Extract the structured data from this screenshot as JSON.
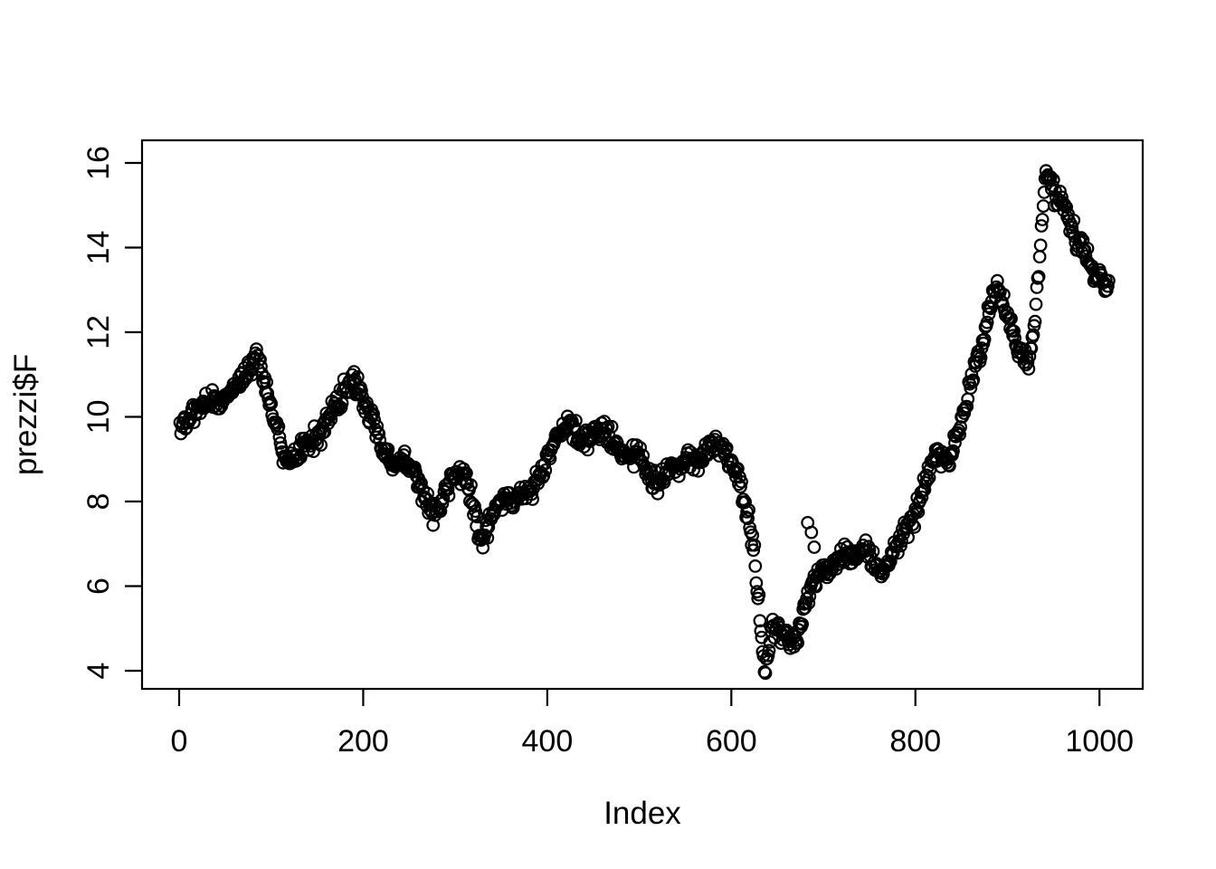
{
  "chart_data": {
    "type": "scatter",
    "title": "",
    "xlabel": "Index",
    "ylabel": "prezzi$F",
    "x_ticks": [
      0,
      200,
      400,
      600,
      800,
      1000
    ],
    "y_ticks": [
      4,
      6,
      8,
      10,
      12,
      14,
      16
    ],
    "xlim": [
      -39,
      1050
    ],
    "ylim": [
      3.5,
      16.5
    ],
    "x_start": 1,
    "n_points": 1010,
    "marker": "open-circle",
    "marker_color": "#000000",
    "axis_color": "#000000",
    "background_color": "#ffffff",
    "grid": false,
    "legend": false,
    "noise_amplitude": 0.11,
    "seed": 1234,
    "series": [
      {
        "name": "prezzi$F",
        "waypoints": [
          [
            0,
            9.75
          ],
          [
            8,
            9.9
          ],
          [
            18,
            10.15
          ],
          [
            28,
            10.4
          ],
          [
            38,
            10.45
          ],
          [
            48,
            10.4
          ],
          [
            58,
            10.6
          ],
          [
            68,
            10.75
          ],
          [
            76,
            11.0
          ],
          [
            84,
            11.3
          ],
          [
            90,
            11.15
          ],
          [
            97,
            10.6
          ],
          [
            104,
            9.9
          ],
          [
            112,
            9.35
          ],
          [
            120,
            9.15
          ],
          [
            128,
            9.25
          ],
          [
            136,
            9.45
          ],
          [
            145,
            9.65
          ],
          [
            154,
            9.85
          ],
          [
            163,
            10.05
          ],
          [
            172,
            10.3
          ],
          [
            181,
            10.55
          ],
          [
            189,
            10.8
          ],
          [
            196,
            10.6
          ],
          [
            204,
            10.15
          ],
          [
            212,
            9.8
          ],
          [
            220,
            9.45
          ],
          [
            228,
            9.1
          ],
          [
            236,
            8.85
          ],
          [
            244,
            8.9
          ],
          [
            252,
            8.7
          ],
          [
            260,
            8.35
          ],
          [
            268,
            8.0
          ],
          [
            276,
            7.65
          ],
          [
            283,
            7.8
          ],
          [
            291,
            8.3
          ],
          [
            299,
            8.7
          ],
          [
            307,
            8.6
          ],
          [
            315,
            8.2
          ],
          [
            323,
            7.5
          ],
          [
            330,
            7.1
          ],
          [
            337,
            7.5
          ],
          [
            345,
            7.9
          ],
          [
            353,
            8.0
          ],
          [
            361,
            7.9
          ],
          [
            369,
            7.95
          ],
          [
            377,
            8.1
          ],
          [
            385,
            8.3
          ],
          [
            393,
            8.7
          ],
          [
            401,
            9.1
          ],
          [
            409,
            9.5
          ],
          [
            417,
            9.8
          ],
          [
            424,
            9.85
          ],
          [
            432,
            9.6
          ],
          [
            440,
            9.35
          ],
          [
            448,
            9.5
          ],
          [
            456,
            9.65
          ],
          [
            464,
            9.6
          ],
          [
            472,
            9.3
          ],
          [
            480,
            9.0
          ],
          [
            488,
            8.85
          ],
          [
            496,
            9.0
          ],
          [
            504,
            8.8
          ],
          [
            512,
            8.45
          ],
          [
            520,
            8.3
          ],
          [
            528,
            8.55
          ],
          [
            536,
            8.95
          ],
          [
            544,
            8.85
          ],
          [
            552,
            8.95
          ],
          [
            560,
            8.8
          ],
          [
            568,
            9.0
          ],
          [
            576,
            9.25
          ],
          [
            584,
            9.3
          ],
          [
            592,
            9.15
          ],
          [
            600,
            8.9
          ],
          [
            607,
            8.6
          ],
          [
            613,
            8.1
          ],
          [
            619,
            7.5
          ],
          [
            625,
            6.7
          ],
          [
            630,
            5.7
          ],
          [
            634,
            4.6
          ],
          [
            637,
            4.15
          ],
          [
            641,
            4.8
          ],
          [
            646,
            5.2
          ],
          [
            652,
            5.05
          ],
          [
            658,
            4.9
          ],
          [
            664,
            4.95
          ],
          [
            670,
            5.0
          ],
          [
            676,
            5.4
          ],
          [
            682,
            5.8
          ],
          [
            688,
            6.15
          ],
          [
            694,
            6.35
          ],
          [
            700,
            6.5
          ],
          [
            707,
            6.65
          ],
          [
            714,
            6.9
          ],
          [
            721,
            7.0
          ],
          [
            728,
            7.0
          ],
          [
            735,
            6.9
          ],
          [
            742,
            7.05
          ],
          [
            749,
            7.0
          ],
          [
            756,
            6.8
          ],
          [
            763,
            6.6
          ],
          [
            770,
            6.7
          ],
          [
            777,
            7.0
          ],
          [
            784,
            7.25
          ],
          [
            791,
            7.5
          ],
          [
            798,
            7.75
          ],
          [
            805,
            8.2
          ],
          [
            812,
            8.7
          ],
          [
            818,
            9.1
          ],
          [
            824,
            9.35
          ],
          [
            830,
            9.2
          ],
          [
            836,
            8.9
          ],
          [
            842,
            9.3
          ],
          [
            848,
            9.7
          ],
          [
            854,
            10.3
          ],
          [
            860,
            10.9
          ],
          [
            866,
            11.3
          ],
          [
            872,
            11.7
          ],
          [
            878,
            12.3
          ],
          [
            884,
            12.9
          ],
          [
            889,
            13.1
          ],
          [
            894,
            12.8
          ],
          [
            899,
            12.4
          ],
          [
            904,
            12.1
          ],
          [
            910,
            11.8
          ],
          [
            916,
            11.5
          ],
          [
            922,
            11.35
          ],
          [
            927,
            11.8
          ],
          [
            931,
            12.6
          ],
          [
            935,
            13.6
          ],
          [
            939,
            15.0
          ],
          [
            942,
            15.9
          ],
          [
            946,
            15.7
          ],
          [
            950,
            15.4
          ],
          [
            955,
            15.1
          ],
          [
            960,
            15.2
          ],
          [
            965,
            14.8
          ],
          [
            970,
            14.4
          ],
          [
            975,
            14.1
          ],
          [
            980,
            14.1
          ],
          [
            985,
            13.8
          ],
          [
            990,
            13.5
          ],
          [
            995,
            13.3
          ],
          [
            1000,
            13.1
          ],
          [
            1005,
            12.85
          ],
          [
            1009,
            13.0
          ]
        ],
        "outliers": [
          [
            683,
            7.5
          ],
          [
            687,
            7.27
          ],
          [
            690,
            6.92
          ]
        ]
      }
    ]
  }
}
